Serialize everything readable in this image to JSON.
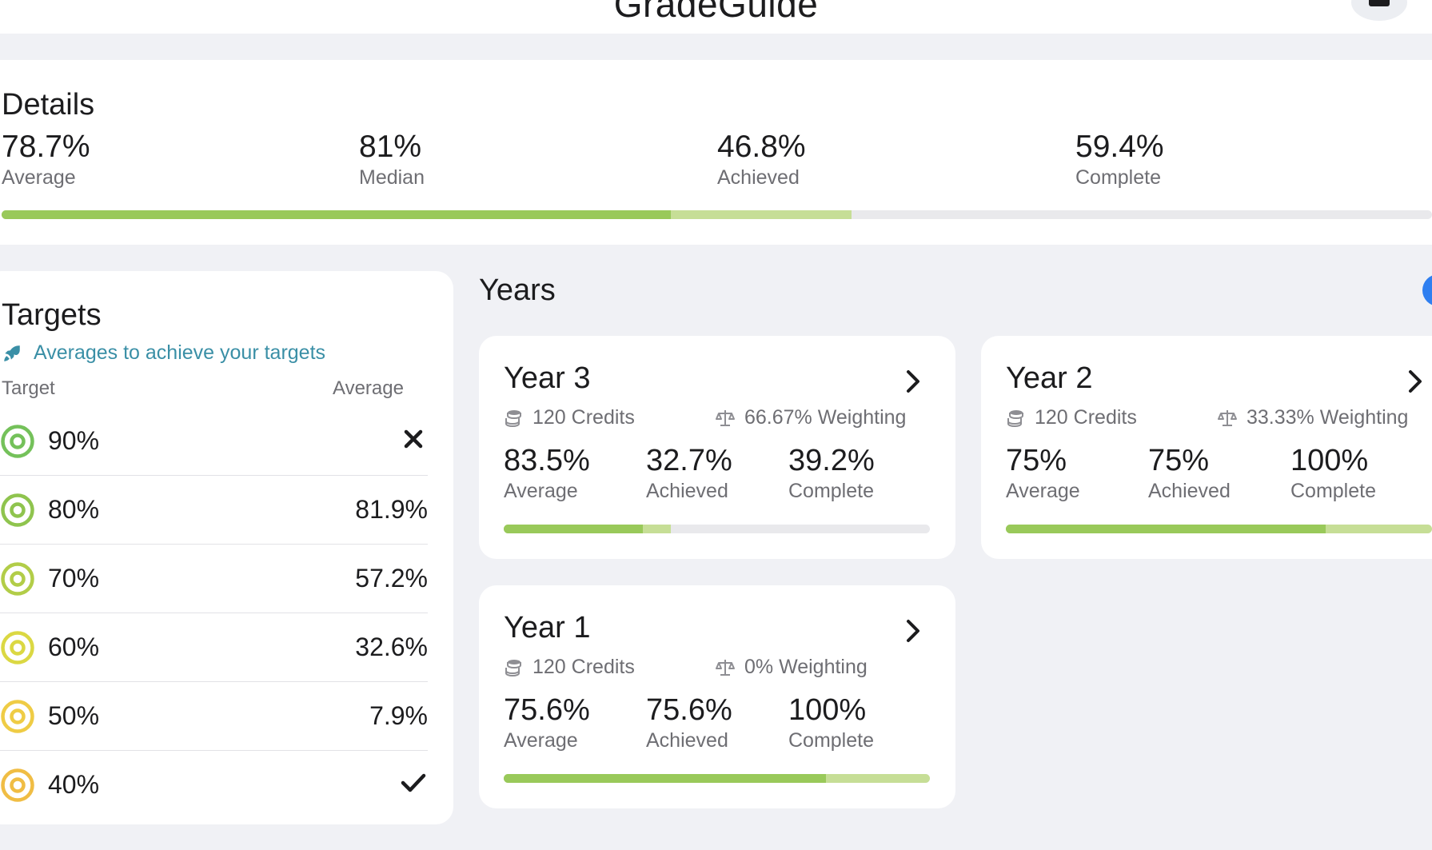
{
  "app": {
    "title": "GradeGuide"
  },
  "details": {
    "title": "Details",
    "stats": [
      {
        "value": "78.7%",
        "label": "Average"
      },
      {
        "value": "81%",
        "label": "Median"
      },
      {
        "value": "46.8%",
        "label": "Achieved"
      },
      {
        "value": "59.4%",
        "label": "Complete"
      }
    ],
    "progress": {
      "achieved_pct": 46.8,
      "complete_pct": 59.4
    }
  },
  "targets": {
    "title": "Targets",
    "subtitle": "Averages to achieve your targets",
    "col_target": "Target",
    "col_average": "Average",
    "rows": [
      {
        "target": "90%",
        "average": "",
        "status": "unachievable",
        "color": "#74c15a"
      },
      {
        "target": "80%",
        "average": "81.9%",
        "status": "pending",
        "color": "#8fc44e"
      },
      {
        "target": "70%",
        "average": "57.2%",
        "status": "pending",
        "color": "#b2cd48"
      },
      {
        "target": "60%",
        "average": "32.6%",
        "status": "pending",
        "color": "#dbd843"
      },
      {
        "target": "50%",
        "average": "7.9%",
        "status": "pending",
        "color": "#efcc45"
      },
      {
        "target": "40%",
        "average": "",
        "status": "achieved",
        "color": "#f0bd44"
      }
    ]
  },
  "years": {
    "title": "Years",
    "cards": [
      {
        "title": "Year 3",
        "credits": "120 Credits",
        "weighting": "66.67% Weighting",
        "stats": [
          {
            "value": "83.5%",
            "label": "Average"
          },
          {
            "value": "32.7%",
            "label": "Achieved"
          },
          {
            "value": "39.2%",
            "label": "Complete"
          }
        ],
        "progress": {
          "achieved_pct": 32.7,
          "complete_pct": 39.2
        }
      },
      {
        "title": "Year 2",
        "credits": "120 Credits",
        "weighting": "33.33% Weighting",
        "stats": [
          {
            "value": "75%",
            "label": "Average"
          },
          {
            "value": "75%",
            "label": "Achieved"
          },
          {
            "value": "100%",
            "label": "Complete"
          }
        ],
        "progress": {
          "achieved_pct": 75,
          "complete_pct": 100
        }
      },
      {
        "title": "Year 1",
        "credits": "120 Credits",
        "weighting": "0% Weighting",
        "stats": [
          {
            "value": "75.6%",
            "label": "Average"
          },
          {
            "value": "75.6%",
            "label": "Achieved"
          },
          {
            "value": "100%",
            "label": "Complete"
          }
        ],
        "progress": {
          "achieved_pct": 75.6,
          "complete_pct": 100
        }
      }
    ]
  },
  "colors": {
    "achieved": "#99c95a",
    "complete": "#c6de96",
    "track": "#e9e9ec",
    "accent_blue": "#2f7ff0",
    "link": "#3a8fa6"
  }
}
